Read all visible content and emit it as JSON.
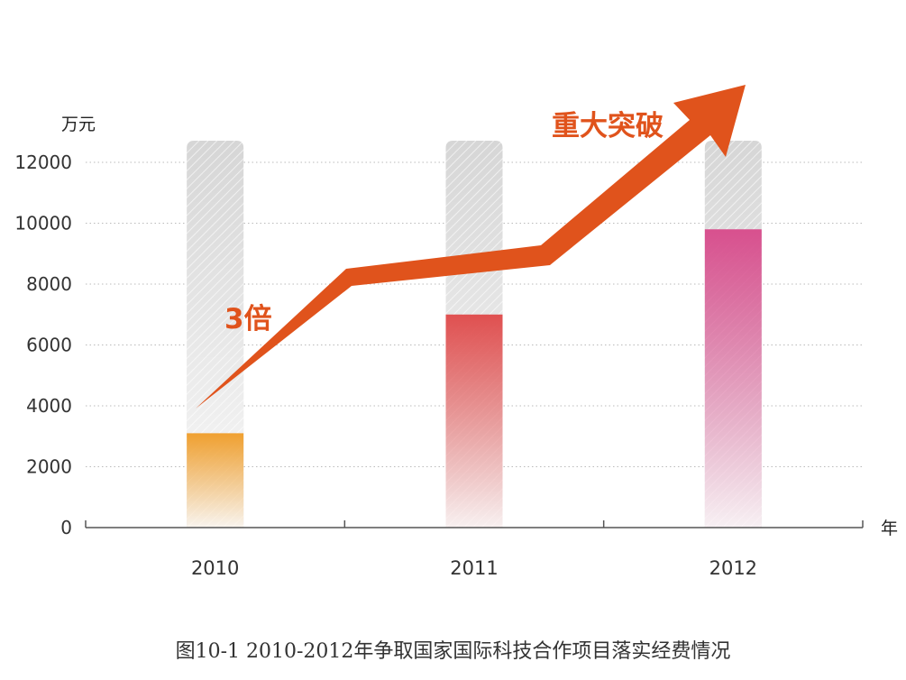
{
  "chart_data": {
    "type": "bar",
    "categories": [
      "2010",
      "2011",
      "2012"
    ],
    "values": [
      3100,
      7000,
      9800
    ],
    "ylim": [
      0,
      12000
    ],
    "yticks": [
      0,
      2000,
      4000,
      6000,
      8000,
      10000,
      12000
    ],
    "ylabel": "万元",
    "xlabel": "年",
    "grid": true,
    "colors": [
      "#f0a030",
      "#e05050",
      "#d8508e"
    ],
    "placeholder_color": "#cccccc",
    "arrow_color": "#e0531c",
    "annotations": [
      "3倍",
      "重大突破"
    ]
  },
  "caption": "图10-1 2010-2012年争取国家国际科技合作项目落实经费情况"
}
